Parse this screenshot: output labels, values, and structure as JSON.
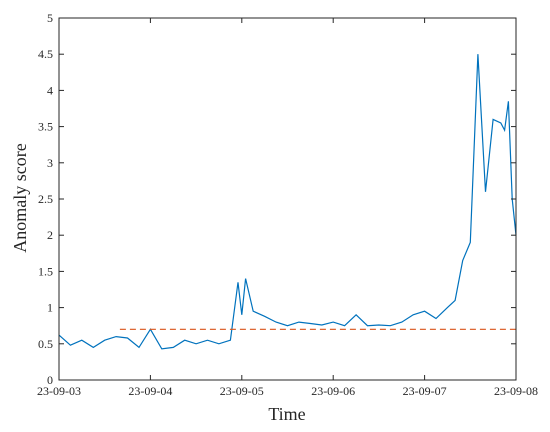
{
  "chart_data": {
    "type": "line",
    "xlabel": "Time",
    "ylabel": "Anomaly score",
    "xlim": [
      "23-09-03",
      "23-09-08"
    ],
    "ylim": [
      0,
      5
    ],
    "xticks": [
      "23-09-03",
      "23-09-04",
      "23-09-05",
      "23-09-06",
      "23-09-07",
      "23-09-08"
    ],
    "yticks": [
      "0",
      "0.5",
      "1",
      "1.5",
      "2",
      "2.5",
      "3",
      "3.5",
      "4",
      "4.5",
      "5"
    ],
    "grid": false,
    "legend": "none",
    "series": [
      {
        "color": "#0072BD",
        "x": [
          "23-09-03 00:00",
          "23-09-03 03:00",
          "23-09-03 06:00",
          "23-09-03 09:00",
          "23-09-03 12:00",
          "23-09-03 15:00",
          "23-09-03 18:00",
          "23-09-03 21:00",
          "23-09-04 00:00",
          "23-09-04 03:00",
          "23-09-04 06:00",
          "23-09-04 09:00",
          "23-09-04 12:00",
          "23-09-04 15:00",
          "23-09-04 18:00",
          "23-09-04 21:00",
          "23-09-04 23:00",
          "23-09-05 00:00",
          "23-09-05 01:00",
          "23-09-05 03:00",
          "23-09-05 06:00",
          "23-09-05 09:00",
          "23-09-05 12:00",
          "23-09-05 15:00",
          "23-09-05 18:00",
          "23-09-05 21:00",
          "23-09-06 00:00",
          "23-09-06 03:00",
          "23-09-06 06:00",
          "23-09-06 09:00",
          "23-09-06 12:00",
          "23-09-06 15:00",
          "23-09-06 18:00",
          "23-09-06 21:00",
          "23-09-07 00:00",
          "23-09-07 03:00",
          "23-09-07 06:00",
          "23-09-07 08:00",
          "23-09-07 10:00",
          "23-09-07 12:00",
          "23-09-07 14:00",
          "23-09-07 16:00",
          "23-09-07 18:00",
          "23-09-07 20:00",
          "23-09-07 21:00",
          "23-09-07 22:00",
          "23-09-07 23:00",
          "23-09-08 00:00"
        ],
        "y": [
          0.62,
          0.48,
          0.55,
          0.45,
          0.55,
          0.6,
          0.58,
          0.45,
          0.7,
          0.43,
          0.45,
          0.55,
          0.5,
          0.55,
          0.5,
          0.55,
          1.35,
          0.9,
          1.4,
          0.95,
          0.88,
          0.8,
          0.75,
          0.8,
          0.78,
          0.76,
          0.8,
          0.75,
          0.9,
          0.75,
          0.76,
          0.75,
          0.8,
          0.9,
          0.95,
          0.85,
          1.0,
          1.1,
          1.65,
          1.9,
          4.5,
          2.6,
          3.6,
          3.55,
          3.45,
          3.85,
          2.5,
          2.0
        ]
      },
      {
        "color": "#D95319",
        "style": "dashed",
        "x": [
          "23-09-03 16:00",
          "23-09-08 00:00"
        ],
        "y": [
          0.7,
          0.7
        ]
      }
    ]
  }
}
